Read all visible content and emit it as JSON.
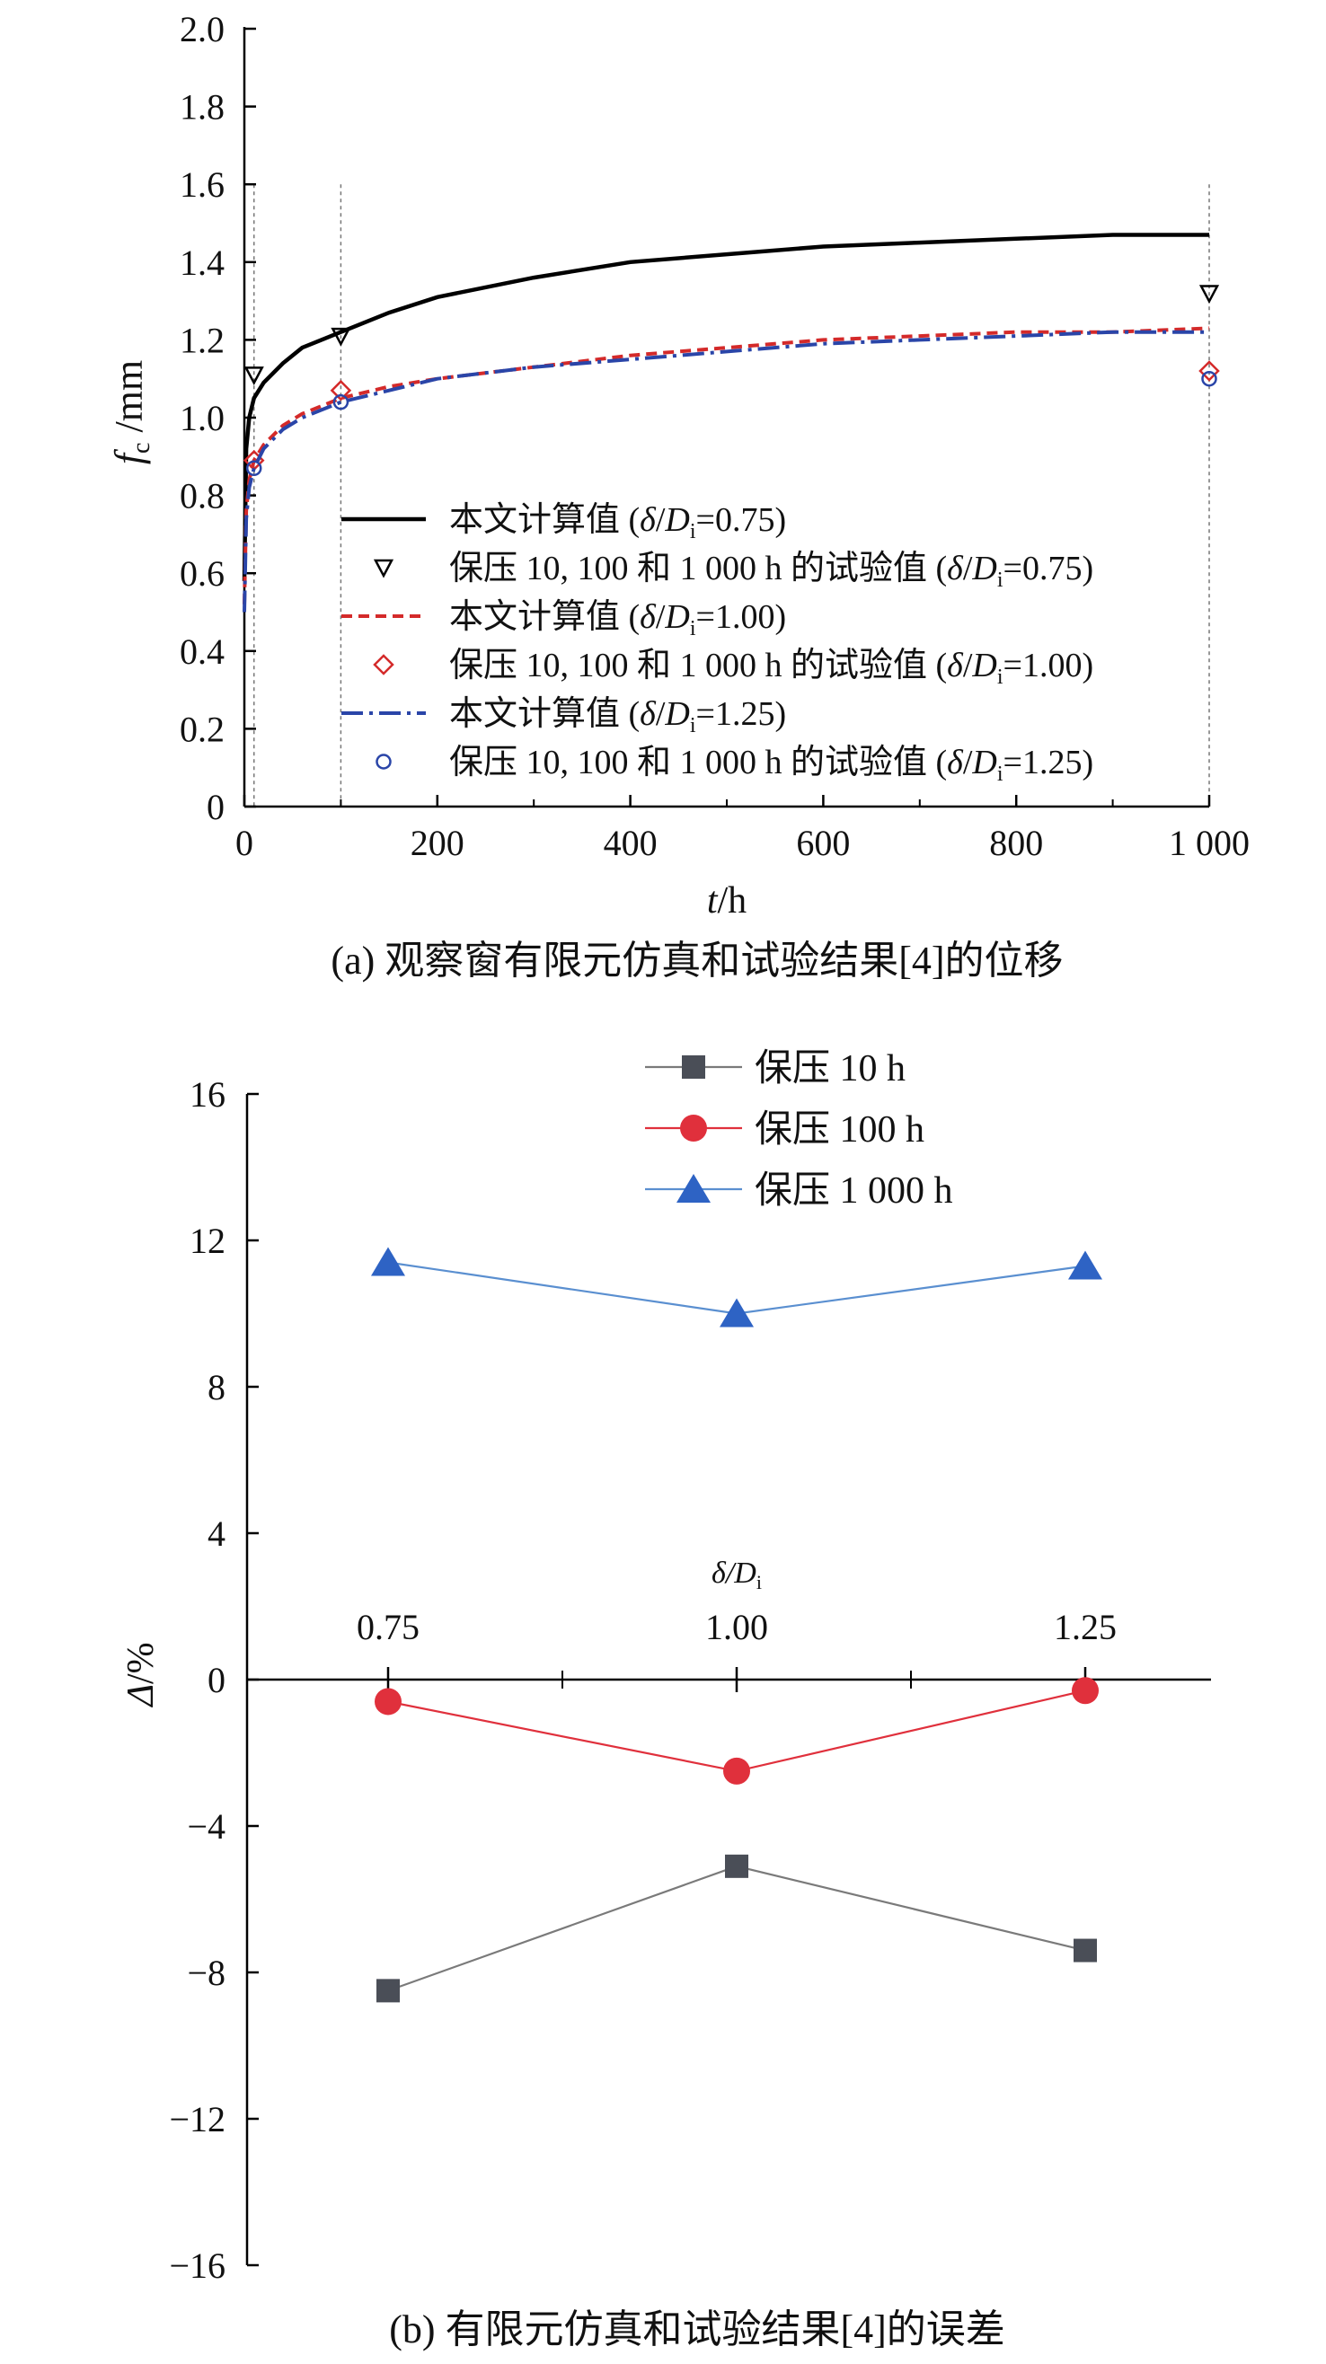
{
  "chart_data": [
    {
      "type": "line",
      "xlabel": "t/h",
      "ylabel": "fc /mm",
      "ylabel_main": "f",
      "ylabel_sub": "c",
      "ylabel_unit": " /mm",
      "xlabel_main": "t",
      "xlabel_unit": "/h",
      "xlim": [
        0,
        1000
      ],
      "ylim": [
        0,
        2.0
      ],
      "x_ticks": [
        0,
        200,
        400,
        600,
        800,
        1000
      ],
      "x_tick_labels": [
        "0",
        "200",
        "400",
        "600",
        "800",
        "1 000"
      ],
      "y_ticks": [
        0,
        0.2,
        0.4,
        0.6,
        0.8,
        1.0,
        1.2,
        1.4,
        1.6,
        1.8,
        2.0
      ],
      "y_tick_labels": [
        "0",
        "0.2",
        "0.4",
        "0.6",
        "0.8",
        "1.0",
        "1.2",
        "1.4",
        "1.6",
        "1.8",
        "2.0"
      ],
      "reference_lines_x": [
        10,
        100,
        1000
      ],
      "legend_position": "lower-right",
      "caption": "(a) 观察窗有限元仿真和试验结果[4]的位移",
      "series": [
        {
          "name": "本文计算值 (δ/Di=0.75)",
          "legend_prefix": "本文计算值 (",
          "legend_ratio": "0.75",
          "style": "solid",
          "color": "#000000",
          "x": [
            0,
            2,
            5,
            10,
            20,
            40,
            60,
            100,
            150,
            200,
            300,
            400,
            500,
            600,
            700,
            800,
            900,
            1000
          ],
          "y": [
            0.58,
            0.92,
            1.0,
            1.05,
            1.09,
            1.14,
            1.18,
            1.22,
            1.27,
            1.31,
            1.36,
            1.4,
            1.42,
            1.44,
            1.45,
            1.46,
            1.47,
            1.47
          ]
        },
        {
          "name": "保压 10, 100 和 1 000 h 的试验值 (δ/Di=0.75)",
          "legend_prefix": "保压 10, 100 和 1 000 h 的试验值 (",
          "legend_ratio": "0.75",
          "style": "markers",
          "marker": "triangle-down",
          "color": "#000000",
          "x": [
            10,
            100,
            1000
          ],
          "y": [
            1.11,
            1.21,
            1.32
          ]
        },
        {
          "name": "本文计算值 (δ/Di=1.00)",
          "legend_prefix": "本文计算值 (",
          "legend_ratio": "1.00",
          "style": "dashed",
          "color": "#d42a2a",
          "x": [
            0,
            2,
            5,
            10,
            20,
            40,
            60,
            100,
            150,
            200,
            300,
            400,
            500,
            600,
            700,
            800,
            900,
            1000
          ],
          "y": [
            0.52,
            0.76,
            0.84,
            0.89,
            0.93,
            0.98,
            1.01,
            1.05,
            1.08,
            1.1,
            1.13,
            1.16,
            1.18,
            1.2,
            1.21,
            1.22,
            1.22,
            1.23
          ]
        },
        {
          "name": "保压 10, 100 和 1 000 h 的试验值 (δ/Di=1.00)",
          "legend_prefix": "保压 10, 100 和 1 000 h 的试验值 (",
          "legend_ratio": "1.00",
          "style": "markers",
          "marker": "diamond",
          "color": "#d42a2a",
          "x": [
            10,
            100,
            1000
          ],
          "y": [
            0.89,
            1.07,
            1.12
          ]
        },
        {
          "name": "本文计算值 (δ/Di=1.25)",
          "legend_prefix": "本文计算值 (",
          "legend_ratio": "1.25",
          "style": "dashdot",
          "color": "#2a45a8",
          "x": [
            0,
            2,
            5,
            10,
            20,
            40,
            60,
            100,
            150,
            200,
            300,
            400,
            500,
            600,
            700,
            800,
            900,
            1000
          ],
          "y": [
            0.5,
            0.74,
            0.82,
            0.87,
            0.92,
            0.97,
            1.0,
            1.04,
            1.07,
            1.1,
            1.13,
            1.15,
            1.17,
            1.19,
            1.2,
            1.21,
            1.22,
            1.22
          ]
        },
        {
          "name": "保压 10, 100 和 1 000 h 的试验值 (δ/Di=1.25)",
          "legend_prefix": "保压 10, 100 和 1 000 h 的试验值 (",
          "legend_ratio": "1.25",
          "style": "markers",
          "marker": "circle-open",
          "color": "#2a45a8",
          "x": [
            10,
            100,
            1000
          ],
          "y": [
            0.87,
            1.04,
            1.1
          ]
        }
      ]
    },
    {
      "type": "line",
      "xlabel": "δ/Di",
      "xlabel_main": "δ/",
      "xlabel_d": "D",
      "xlabel_sub": "i",
      "ylabel": "Δ/%",
      "categories": [
        "0.75",
        "1.00",
        "1.25"
      ],
      "xlim": [
        0.625,
        1.35
      ],
      "ylim": [
        -16,
        16
      ],
      "y_ticks": [
        -16,
        -12,
        -8,
        -4,
        0,
        4,
        8,
        12,
        16
      ],
      "y_tick_labels": [
        "−16",
        "−12",
        "−8",
        "−4",
        "0",
        "4",
        "8",
        "12",
        "16"
      ],
      "legend_position": "top-center",
      "caption": "(b) 有限元仿真和试验结果[4]的误差",
      "series": [
        {
          "name": "保压 10 h",
          "marker": "square",
          "color": "#4a4e57",
          "line_color": "#7a7a7a",
          "values": [
            -8.5,
            -5.1,
            -7.4
          ]
        },
        {
          "name": "保压 100 h",
          "marker": "circle",
          "color": "#e0303c",
          "line_color": "#e0303c",
          "values": [
            -0.6,
            -2.5,
            -0.3
          ]
        },
        {
          "name": "保压 1 000 h",
          "marker": "triangle-up",
          "color": "#2e63c4",
          "line_color": "#5a8fd0",
          "values": [
            11.4,
            10.0,
            11.3
          ]
        }
      ]
    }
  ]
}
